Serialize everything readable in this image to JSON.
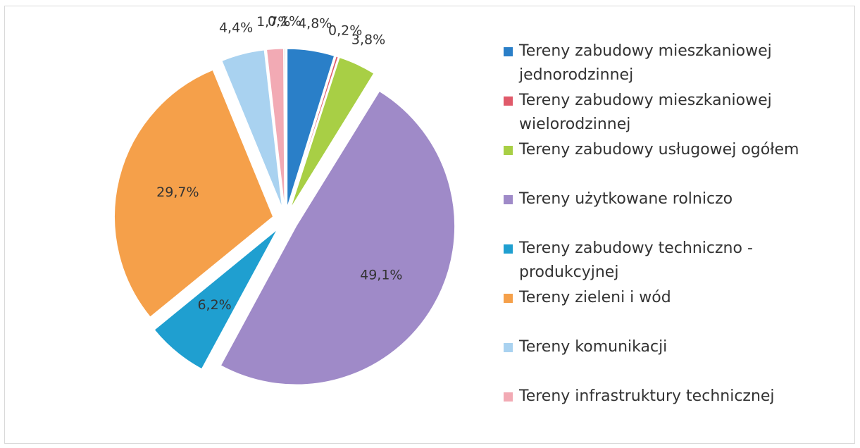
{
  "chart_data": {
    "type": "pie",
    "categories": [
      "Tereny zabudowy mieszkaniowej jednorodzinnej",
      "Tereny zabudowy mieszkaniowej wielorodzinnej",
      "Tereny zabudowy usługowej ogółem",
      "Tereny użytkowane rolniczo",
      "Tereny zabudowy techniczno - produkcyjnej",
      "Tereny zieleni i wód",
      "Tereny komunikacji",
      "Tereny infrastruktury technicznej",
      null
    ],
    "values": [
      4.8,
      0.2,
      3.8,
      49.1,
      6.2,
      29.7,
      4.4,
      1.7,
      0.1
    ],
    "value_labels": [
      "4,8%",
      "0,2%",
      "3,8%",
      "49,1%",
      "6,2%",
      "29,7%",
      "4,4%",
      "1,7%",
      "0,1%"
    ],
    "colors": [
      "#2a7fc8",
      "#e05a6a",
      "#a8cf45",
      "#9f8ac8",
      "#1f9fd0",
      "#f5a04a",
      "#a9d2f0",
      "#f2aab4",
      "#b0b0b0"
    ],
    "legend": "right"
  }
}
